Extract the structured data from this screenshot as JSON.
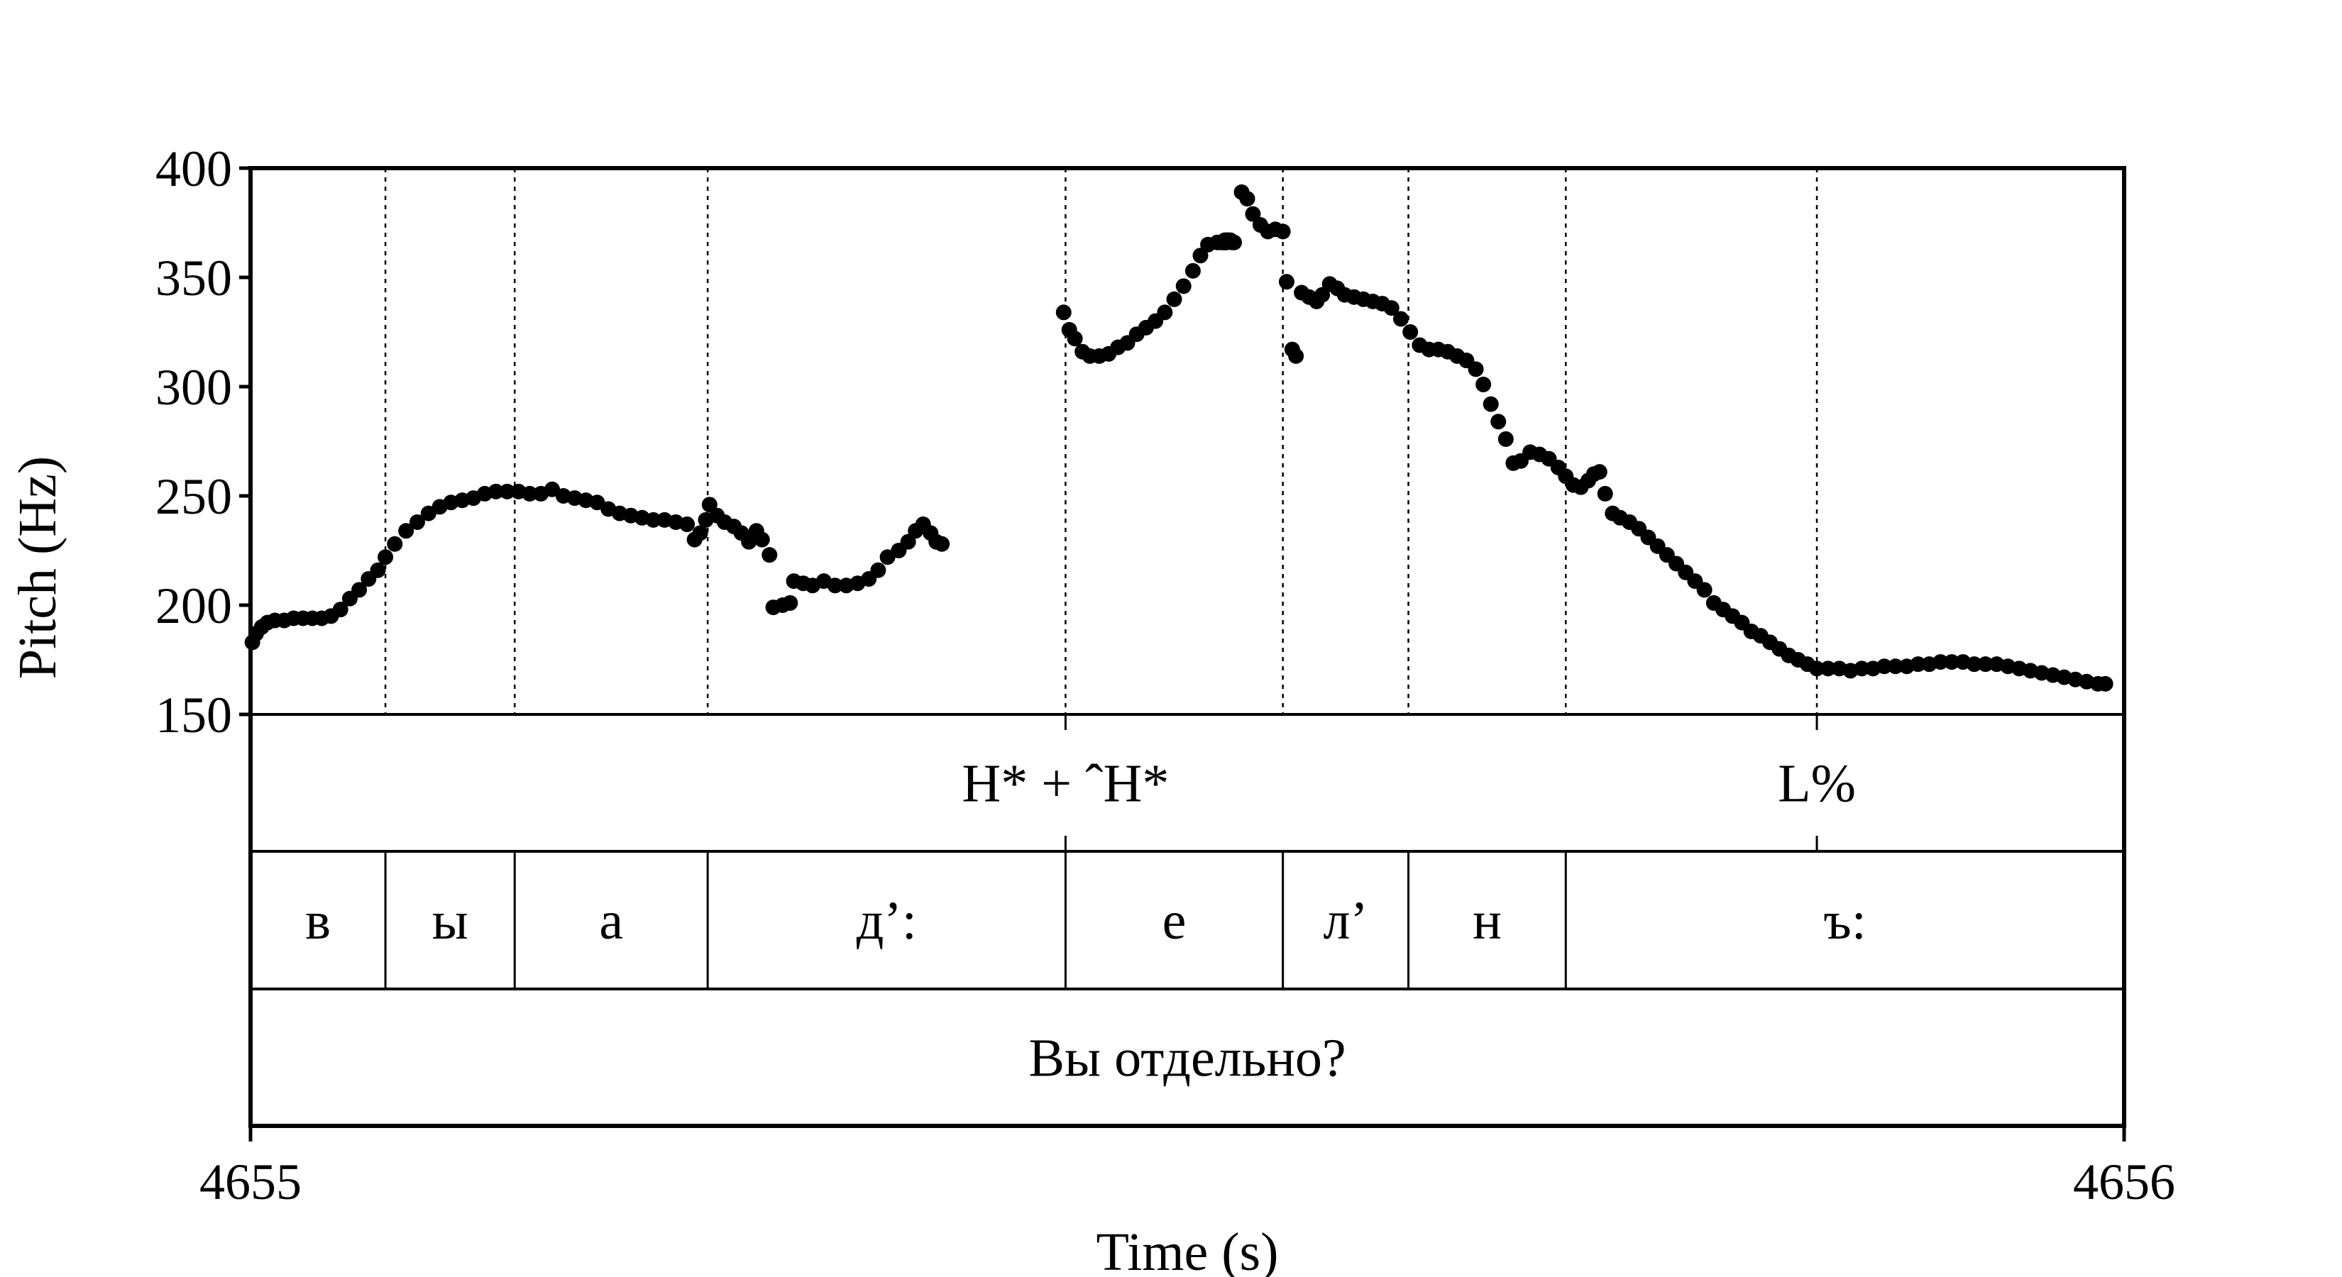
{
  "chart_data": {
    "type": "scatter",
    "xlabel": "Time (s)",
    "ylabel": "Pitch (Hz)",
    "xlim": [
      4655,
      4656
    ],
    "ylim": [
      150,
      400
    ],
    "x_tick_labels": [
      "4655",
      "4656"
    ],
    "y_tick_labels": [
      "400",
      "350",
      "300",
      "250",
      "200",
      "150"
    ],
    "y_ticks": [
      400,
      350,
      300,
      250,
      200,
      150
    ],
    "grid": "vertical dotted lines at segment boundaries",
    "boundaries": [
      4655.072,
      4655.141,
      4655.244,
      4655.435,
      4655.551,
      4655.618,
      4655.702,
      4655.836
    ],
    "points": [
      [
        4655.001,
        183
      ],
      [
        4655.003,
        187
      ],
      [
        4655.006,
        190
      ],
      [
        4655.009,
        192
      ],
      [
        4655.013,
        193
      ],
      [
        4655.018,
        193
      ],
      [
        4655.023,
        194
      ],
      [
        4655.028,
        194
      ],
      [
        4655.033,
        194
      ],
      [
        4655.038,
        194
      ],
      [
        4655.043,
        195
      ],
      [
        4655.048,
        198
      ],
      [
        4655.053,
        203
      ],
      [
        4655.058,
        207
      ],
      [
        4655.063,
        212
      ],
      [
        4655.068,
        216
      ],
      [
        4655.072,
        222
      ],
      [
        4655.077,
        228
      ],
      [
        4655.083,
        234
      ],
      [
        4655.089,
        238
      ],
      [
        4655.095,
        242
      ],
      [
        4655.101,
        245
      ],
      [
        4655.107,
        247
      ],
      [
        4655.113,
        248
      ],
      [
        4655.119,
        249
      ],
      [
        4655.125,
        251
      ],
      [
        4655.131,
        252
      ],
      [
        4655.137,
        252
      ],
      [
        4655.143,
        252
      ],
      [
        4655.149,
        251
      ],
      [
        4655.155,
        251
      ],
      [
        4655.161,
        253
      ],
      [
        4655.167,
        250
      ],
      [
        4655.173,
        249
      ],
      [
        4655.179,
        248
      ],
      [
        4655.185,
        247
      ],
      [
        4655.191,
        244
      ],
      [
        4655.197,
        242
      ],
      [
        4655.203,
        241
      ],
      [
        4655.209,
        240
      ],
      [
        4655.215,
        239
      ],
      [
        4655.221,
        239
      ],
      [
        4655.227,
        238
      ],
      [
        4655.233,
        237
      ],
      [
        4655.237,
        230
      ],
      [
        4655.24,
        233
      ],
      [
        4655.243,
        239
      ],
      [
        4655.245,
        246
      ],
      [
        4655.249,
        241
      ],
      [
        4655.253,
        238
      ],
      [
        4655.258,
        236
      ],
      [
        4655.262,
        233
      ],
      [
        4655.266,
        229
      ],
      [
        4655.27,
        234
      ],
      [
        4655.273,
        230
      ],
      [
        4655.277,
        223
      ],
      [
        4655.279,
        199
      ],
      [
        4655.284,
        200
      ],
      [
        4655.288,
        201
      ],
      [
        4655.29,
        211
      ],
      [
        4655.295,
        210
      ],
      [
        4655.3,
        209
      ],
      [
        4655.306,
        211
      ],
      [
        4655.312,
        209
      ],
      [
        4655.318,
        209
      ],
      [
        4655.324,
        210
      ],
      [
        4655.33,
        212
      ],
      [
        4655.335,
        216
      ],
      [
        4655.34,
        222
      ],
      [
        4655.346,
        225
      ],
      [
        4655.351,
        229
      ],
      [
        4655.355,
        234
      ],
      [
        4655.359,
        237
      ],
      [
        4655.363,
        233
      ],
      [
        4655.366,
        229
      ],
      [
        4655.369,
        228
      ],
      [
        4655.434,
        334
      ],
      [
        4655.437,
        326
      ],
      [
        4655.44,
        322
      ],
      [
        4655.444,
        316
      ],
      [
        4655.448,
        314
      ],
      [
        4655.453,
        314
      ],
      [
        4655.458,
        315
      ],
      [
        4655.463,
        318
      ],
      [
        4655.468,
        320
      ],
      [
        4655.473,
        324
      ],
      [
        4655.478,
        327
      ],
      [
        4655.483,
        330
      ],
      [
        4655.488,
        334
      ],
      [
        4655.493,
        340
      ],
      [
        4655.498,
        346
      ],
      [
        4655.503,
        353
      ],
      [
        4655.507,
        360
      ],
      [
        4655.511,
        365
      ],
      [
        4655.516,
        366
      ],
      [
        4655.521,
        367
      ],
      [
        4655.525,
        366
      ],
      [
        4655.52,
        367
      ],
      [
        4655.522,
        367
      ],
      [
        4655.518,
        366
      ],
      [
        4655.52,
        366
      ],
      [
        4655.519,
        366
      ],
      [
        4655.521,
        367
      ],
      [
        4655.52,
        366
      ],
      [
        4655.52,
        366
      ],
      [
        4655.524,
        366
      ],
      [
        4655.523,
        367
      ],
      [
        4655.521,
        366
      ],
      [
        4655.529,
        389
      ],
      [
        4655.532,
        386
      ],
      [
        4655.535,
        379
      ],
      [
        4655.539,
        374
      ],
      [
        4655.543,
        371
      ],
      [
        4655.547,
        372
      ],
      [
        4655.551,
        371
      ],
      [
        4655.553,
        348
      ],
      [
        4655.556,
        317
      ],
      [
        4655.558,
        314
      ],
      [
        4655.561,
        343
      ],
      [
        4655.565,
        341
      ],
      [
        4655.569,
        339
      ],
      [
        4655.572,
        342
      ],
      [
        4655.576,
        347
      ],
      [
        4655.58,
        345
      ],
      [
        4655.584,
        342
      ],
      [
        4655.589,
        341
      ],
      [
        4655.594,
        340
      ],
      [
        4655.599,
        339
      ],
      [
        4655.604,
        338
      ],
      [
        4655.609,
        336
      ],
      [
        4655.614,
        331
      ],
      [
        4655.619,
        325
      ],
      [
        4655.624,
        319
      ],
      [
        4655.629,
        317
      ],
      [
        4655.634,
        317
      ],
      [
        4655.639,
        316
      ],
      [
        4655.644,
        314
      ],
      [
        4655.649,
        312
      ],
      [
        4655.654,
        308
      ],
      [
        4655.658,
        301
      ],
      [
        4655.662,
        292
      ],
      [
        4655.666,
        284
      ],
      [
        4655.67,
        276
      ],
      [
        4655.674,
        265
      ],
      [
        4655.678,
        266
      ],
      [
        4655.683,
        270
      ],
      [
        4655.688,
        269
      ],
      [
        4655.693,
        267
      ],
      [
        4655.698,
        263
      ],
      [
        4655.702,
        259
      ],
      [
        4655.706,
        255
      ],
      [
        4655.71,
        254
      ],
      [
        4655.714,
        257
      ],
      [
        4655.717,
        260
      ],
      [
        4655.72,
        261
      ],
      [
        4655.723,
        251
      ],
      [
        4655.727,
        242
      ],
      [
        4655.731,
        240
      ],
      [
        4655.736,
        238
      ],
      [
        4655.741,
        235
      ],
      [
        4655.746,
        231
      ],
      [
        4655.751,
        227
      ],
      [
        4655.756,
        223
      ],
      [
        4655.761,
        219
      ],
      [
        4655.766,
        215
      ],
      [
        4655.771,
        211
      ],
      [
        4655.776,
        207
      ],
      [
        4655.781,
        201
      ],
      [
        4655.786,
        198
      ],
      [
        4655.791,
        195
      ],
      [
        4655.796,
        192
      ],
      [
        4655.801,
        188
      ],
      [
        4655.806,
        186
      ],
      [
        4655.811,
        183
      ],
      [
        4655.816,
        180
      ],
      [
        4655.821,
        177
      ],
      [
        4655.826,
        175
      ],
      [
        4655.831,
        173
      ],
      [
        4655.836,
        171
      ],
      [
        4655.842,
        171
      ],
      [
        4655.848,
        171
      ],
      [
        4655.854,
        170
      ],
      [
        4655.86,
        171
      ],
      [
        4655.866,
        171
      ],
      [
        4655.872,
        172
      ],
      [
        4655.878,
        172
      ],
      [
        4655.884,
        172
      ],
      [
        4655.89,
        173
      ],
      [
        4655.896,
        173
      ],
      [
        4655.902,
        174
      ],
      [
        4655.908,
        174
      ],
      [
        4655.914,
        174
      ],
      [
        4655.92,
        173
      ],
      [
        4655.926,
        173
      ],
      [
        4655.932,
        173
      ],
      [
        4655.938,
        172
      ],
      [
        4655.944,
        171
      ],
      [
        4655.95,
        170
      ],
      [
        4655.956,
        169
      ],
      [
        4655.962,
        168
      ],
      [
        4655.968,
        167
      ],
      [
        4655.974,
        166
      ],
      [
        4655.98,
        165
      ],
      [
        4655.986,
        164
      ],
      [
        4655.99,
        164
      ]
    ],
    "tiers": {
      "tones": [
        {
          "label": "H* + ˆH*",
          "t": 4655.435
        },
        {
          "label": "L%",
          "t": 4655.836
        }
      ],
      "segments": [
        {
          "label": "в",
          "start": 4655.0,
          "end": 4655.072
        },
        {
          "label": "ы",
          "start": 4655.072,
          "end": 4655.141
        },
        {
          "label": "а",
          "start": 4655.141,
          "end": 4655.244
        },
        {
          "label": "д’:",
          "start": 4655.244,
          "end": 4655.435
        },
        {
          "label": "е",
          "start": 4655.435,
          "end": 4655.551
        },
        {
          "label": "л’",
          "start": 4655.551,
          "end": 4655.618
        },
        {
          "label": "н",
          "start": 4655.618,
          "end": 4655.702
        },
        {
          "label": "ъ:",
          "start": 4655.702,
          "end": 4656.0
        }
      ],
      "utterance": "Вы отдельно?"
    }
  }
}
